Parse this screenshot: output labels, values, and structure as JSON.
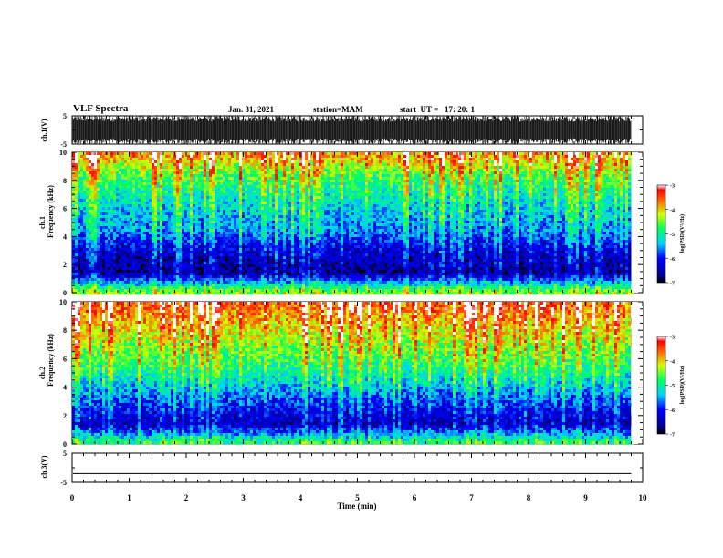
{
  "header": {
    "title": "VLF Spectra",
    "date": "Jan. 31, 2021",
    "station": "station=MAM",
    "start": "start  UT =   17: 20: 1"
  },
  "chart_data": [
    {
      "type": "line",
      "panel": "ch1-waveform",
      "ylabel": "ch.1(V)",
      "ylim": [
        -5,
        5
      ],
      "yticks": [
        "5",
        "-5"
      ],
      "xlim": [
        0,
        10
      ],
      "description_values": {
        "y_min": -5,
        "y_max": 5
      },
      "color": "#000000"
    },
    {
      "type": "heatmap",
      "panel": "ch1-spectrogram",
      "ylabel": [
        "ch.1",
        "Frequency (kHz)"
      ],
      "ylim": [
        0,
        10
      ],
      "yticks": [
        "0",
        "2",
        "4",
        "6",
        "8",
        "10"
      ],
      "xlim": [
        0,
        10
      ],
      "colorbar": {
        "label": "log(PSD)(V²/Hz)",
        "range": [
          -7,
          -3
        ],
        "ticks": [
          "-3",
          "-4",
          "-5",
          "-6",
          "-7"
        ]
      },
      "intensity_profile": [
        {
          "freq": 0.2,
          "level": -4.5
        },
        {
          "freq": 1.5,
          "level": -6.6
        },
        {
          "freq": 3.0,
          "level": -6.3
        },
        {
          "freq": 4.5,
          "level": -5.6
        },
        {
          "freq": 6.5,
          "level": -5.2
        },
        {
          "freq": 8.5,
          "level": -4.6
        },
        {
          "freq": 9.8,
          "level": -3.8
        }
      ]
    },
    {
      "type": "heatmap",
      "panel": "ch2-spectrogram",
      "ylabel": [
        "ch.2",
        "Frequency (kHz)"
      ],
      "ylim": [
        0,
        10
      ],
      "yticks": [
        "0",
        "2",
        "4",
        "6",
        "8",
        "10"
      ],
      "xlim": [
        0,
        10
      ],
      "colorbar": {
        "label": "log(PSD)(V²/Hz)",
        "range": [
          -7,
          -3
        ],
        "ticks": [
          "-3",
          "-4",
          "-5",
          "-6",
          "-7"
        ]
      },
      "intensity_profile": [
        {
          "freq": 0.2,
          "level": -4.8
        },
        {
          "freq": 1.5,
          "level": -6.4
        },
        {
          "freq": 3.0,
          "level": -5.9
        },
        {
          "freq": 5.0,
          "level": -5.0
        },
        {
          "freq": 7.0,
          "level": -4.4
        },
        {
          "freq": 9.0,
          "level": -3.8
        },
        {
          "freq": 9.9,
          "level": -3.5
        }
      ]
    },
    {
      "type": "line",
      "panel": "ch3-waveform",
      "ylabel": "ch.3(V)",
      "ylim": [
        -5,
        5
      ],
      "yticks": [
        "5",
        "-5"
      ],
      "xlim": [
        0,
        10
      ],
      "values": {
        "constant": -2
      },
      "color": "#000000"
    }
  ],
  "xaxis": {
    "label": "Time (min)",
    "ticks": [
      "0",
      "1",
      "2",
      "3",
      "4",
      "5",
      "6",
      "7",
      "8",
      "9",
      "10"
    ],
    "data_end": 9.8
  }
}
